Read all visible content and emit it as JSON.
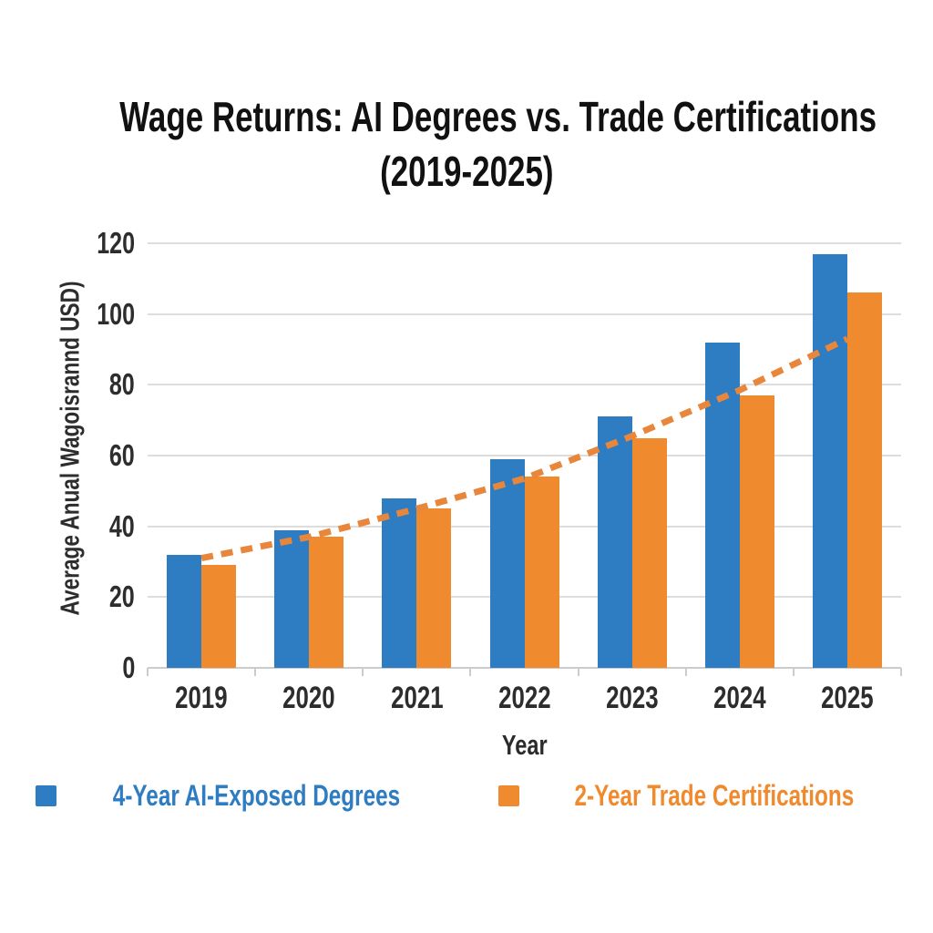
{
  "title": {
    "line1": "Wage Returns: AI Degrees vs. Trade Certifications",
    "line2": "(2019-2025)"
  },
  "axes": {
    "y_label": "Average Anual Wagoisrannd USD)",
    "x_label": "Year"
  },
  "legend": {
    "items": [
      {
        "label": "4-Year AI-Exposed Degrees",
        "color": "#2E7CC1"
      },
      {
        "label": "2-Year Trade Certifications",
        "color": "#F08A2E"
      }
    ]
  },
  "chart_data": {
    "type": "bar",
    "title": "Wage Returns: AI Degrees vs. Trade Certifications (2019-2025)",
    "xlabel": "Year",
    "ylabel": "Average Anual Wagoisrannd USD)",
    "categories": [
      "2019",
      "2020",
      "2021",
      "2022",
      "2023",
      "2024",
      "2025"
    ],
    "series": [
      {
        "name": "4-Year AI-Exposed Degrees",
        "color": "#2E7CC1",
        "values": [
          32,
          39,
          48,
          59,
          71,
          92,
          117
        ]
      },
      {
        "name": "2-Year Trade Certifications",
        "color": "#F08A2E",
        "values": [
          29,
          37,
          45,
          54,
          65,
          77,
          106
        ]
      }
    ],
    "trend_line": {
      "name": "trade-certifications-trend",
      "color": "#E8873C",
      "style": "dashed",
      "values": [
        31,
        37,
        45,
        53.5,
        65.5,
        78.5,
        93
      ]
    },
    "ylim": [
      0,
      120
    ],
    "yticks": [
      0,
      20,
      40,
      60,
      80,
      100,
      120
    ],
    "grid": true,
    "legend_position": "bottom"
  },
  "colors": {
    "background": "#FFFFFF",
    "gridline": "#DDDDDD",
    "axis": "#CCCCCC",
    "tick_text": "#2D2D2D",
    "title_text": "#111111"
  }
}
